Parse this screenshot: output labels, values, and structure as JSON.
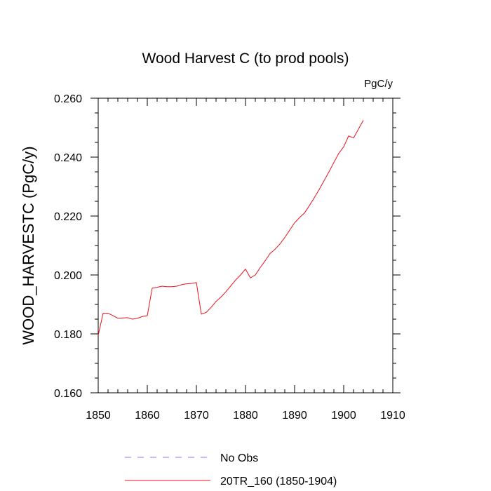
{
  "chart_data": {
    "type": "line",
    "title": "Wood Harvest C (to prod pools)",
    "units": "PgC/y",
    "xlabel": "",
    "ylabel": "WOOD_HARVESTC  (PgC/y)",
    "xlim": [
      1850,
      1910
    ],
    "ylim": [
      0.16,
      0.26
    ],
    "x_ticks": [
      1850,
      1860,
      1870,
      1880,
      1890,
      1900,
      1910
    ],
    "x_tick_labels": [
      "1850",
      "1860",
      "1870",
      "1880",
      "1890",
      "1900",
      "1910"
    ],
    "y_ticks": [
      0.16,
      0.18,
      0.2,
      0.22,
      0.24,
      0.26
    ],
    "y_tick_labels": [
      "0.160",
      "0.180",
      "0.200",
      "0.220",
      "0.240",
      "0.260"
    ],
    "grid": false,
    "legend": {
      "placement": "bottom",
      "entries": [
        {
          "label": "No Obs",
          "color": "#7f7fff",
          "style": "dashed"
        },
        {
          "label": "20TR_160 (1850-1904)",
          "color": "#e8121a",
          "style": "solid"
        }
      ]
    },
    "series": [
      {
        "name": "20TR_160 (1850-1904)",
        "color": "#e8121a",
        "x": [
          1850,
          1851,
          1852,
          1853,
          1854,
          1855,
          1856,
          1857,
          1858,
          1859,
          1860,
          1861,
          1862,
          1863,
          1864,
          1865,
          1866,
          1867,
          1868,
          1869,
          1870,
          1871,
          1872,
          1873,
          1874,
          1875,
          1876,
          1877,
          1878,
          1879,
          1880,
          1881,
          1882,
          1883,
          1884,
          1885,
          1886,
          1887,
          1888,
          1889,
          1890,
          1891,
          1892,
          1893,
          1894,
          1895,
          1896,
          1897,
          1898,
          1899,
          1900,
          1901,
          1902,
          1903,
          1904
        ],
        "y": [
          0.1795,
          0.187,
          0.187,
          0.1862,
          0.1853,
          0.1854,
          0.1855,
          0.185,
          0.1853,
          0.1859,
          0.1862,
          0.1955,
          0.1958,
          0.1962,
          0.196,
          0.196,
          0.1962,
          0.1967,
          0.197,
          0.1971,
          0.1974,
          0.1867,
          0.1873,
          0.189,
          0.191,
          0.1925,
          0.1943,
          0.1963,
          0.1983,
          0.2,
          0.202,
          0.199,
          0.2,
          0.2025,
          0.2048,
          0.2073,
          0.2087,
          0.2105,
          0.2127,
          0.2152,
          0.2177,
          0.2195,
          0.221,
          0.2235,
          0.2262,
          0.229,
          0.232,
          0.235,
          0.2382,
          0.2413,
          0.2435,
          0.2472,
          0.2465,
          0.2495,
          0.2525
        ]
      }
    ]
  }
}
